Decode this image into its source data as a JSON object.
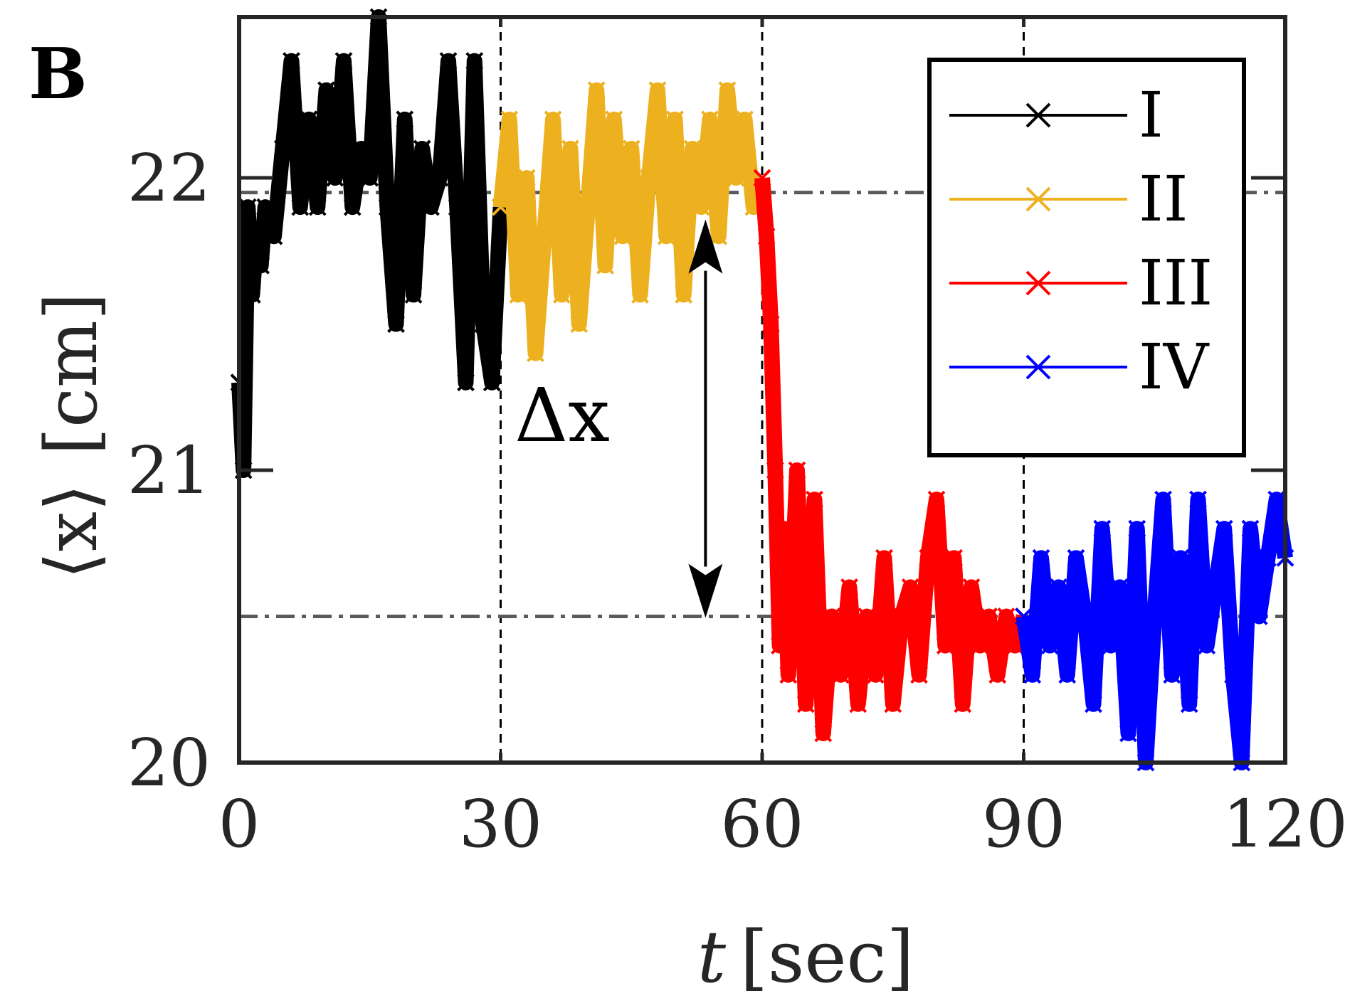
{
  "chart_data": {
    "type": "line",
    "panel_label": "B",
    "xlabel": "t [sec]",
    "xlabel_var": "t",
    "xlabel_unit": "[sec]",
    "ylabel": "⟨x⟩ [cm]",
    "ylabel_var": "⟨x⟩",
    "ylabel_unit": "[cm]",
    "xlim": [
      0,
      120
    ],
    "ylim": [
      20,
      22.55
    ],
    "xticks": [
      0,
      30,
      60,
      90,
      120
    ],
    "xtick_labels": [
      "0",
      "30",
      "60",
      "90",
      "120"
    ],
    "yticks": [
      20,
      21,
      22
    ],
    "ytick_labels": [
      "20",
      "21",
      "22"
    ],
    "phase_boundaries": [
      30,
      60,
      90
    ],
    "reference_lines": [
      21.95,
      20.5
    ],
    "annotation": {
      "text": "Δx",
      "x_position": 53.5,
      "from": 21.95,
      "to": 20.5
    },
    "legend_position": "top-right",
    "series": [
      {
        "name": "I",
        "color": "#000000",
        "x": [
          0,
          0.5,
          1,
          1.5,
          2,
          2.5,
          3,
          4,
          5,
          6,
          7,
          8,
          9,
          10,
          11,
          12,
          13,
          14,
          15,
          16,
          17,
          18,
          19,
          20,
          21,
          22,
          23,
          24,
          25,
          26,
          27,
          28,
          29,
          30
        ],
        "y": [
          21.3,
          21.0,
          21.9,
          21.6,
          21.8,
          21.7,
          21.9,
          21.8,
          22.1,
          22.4,
          21.9,
          22.2,
          21.9,
          22.3,
          22.0,
          22.4,
          21.9,
          22.1,
          22.0,
          22.55,
          21.9,
          21.5,
          22.2,
          21.6,
          22.1,
          21.9,
          22.0,
          22.4,
          21.9,
          21.3,
          22.4,
          21.5,
          21.3,
          21.9
        ]
      },
      {
        "name": "II",
        "color": "#EDB120",
        "x": [
          30,
          31,
          32,
          33,
          34,
          35,
          36,
          37,
          38,
          39,
          40,
          41,
          42,
          43,
          44,
          45,
          46,
          47,
          48,
          49,
          50,
          51,
          52,
          53,
          54,
          55,
          56,
          57,
          58,
          59,
          60
        ],
        "y": [
          21.9,
          22.2,
          21.6,
          22.0,
          21.4,
          21.8,
          22.2,
          21.6,
          22.1,
          21.5,
          21.9,
          22.3,
          21.7,
          22.2,
          21.8,
          22.1,
          21.6,
          22.0,
          22.3,
          21.8,
          22.2,
          21.6,
          22.1,
          21.9,
          22.2,
          21.8,
          22.3,
          22.0,
          22.2,
          21.9,
          22.0
        ]
      },
      {
        "name": "III",
        "color": "#FF0000",
        "x": [
          60,
          60.5,
          61,
          61.5,
          62,
          62.5,
          63,
          64,
          65,
          66,
          67,
          68,
          69,
          70,
          71,
          72,
          73,
          74,
          75,
          76,
          77,
          78,
          79,
          80,
          81,
          82,
          83,
          84,
          85,
          86,
          87,
          88,
          89,
          90
        ],
        "y": [
          22.0,
          21.8,
          21.5,
          21.0,
          20.4,
          20.8,
          20.3,
          21.0,
          20.2,
          20.9,
          20.1,
          20.5,
          20.3,
          20.6,
          20.2,
          20.5,
          20.3,
          20.7,
          20.2,
          20.5,
          20.6,
          20.3,
          20.7,
          20.9,
          20.4,
          20.7,
          20.2,
          20.6,
          20.4,
          20.5,
          20.3,
          20.5,
          20.4,
          20.5
        ]
      },
      {
        "name": "IV",
        "color": "#0000FF",
        "x": [
          90,
          91,
          92,
          93,
          94,
          95,
          96,
          97,
          98,
          99,
          100,
          101,
          102,
          103,
          104,
          105,
          106,
          107,
          108,
          109,
          110,
          111,
          112,
          113,
          114,
          115,
          116,
          117,
          118,
          119,
          120
        ],
        "y": [
          20.5,
          20.3,
          20.7,
          20.4,
          20.6,
          20.3,
          20.7,
          20.5,
          20.2,
          20.8,
          20.4,
          20.6,
          20.1,
          20.8,
          20.0,
          20.5,
          20.9,
          20.3,
          20.7,
          20.2,
          20.9,
          20.4,
          20.6,
          20.8,
          20.3,
          20.0,
          20.8,
          20.5,
          20.7,
          20.9,
          20.7
        ]
      }
    ]
  }
}
